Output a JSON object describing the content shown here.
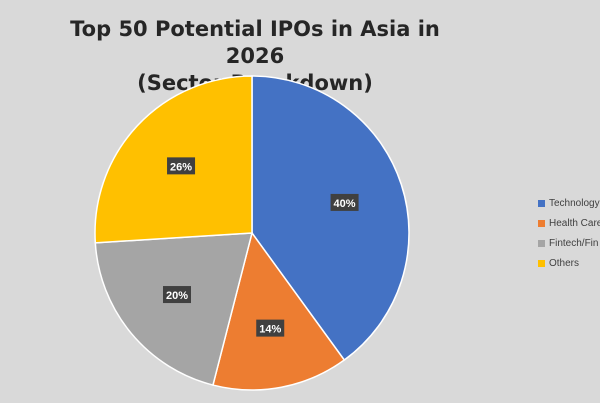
{
  "chart_data": {
    "type": "pie",
    "title_lines": [
      "Top 50 Potential IPOs in Asia in 2026",
      "(Sector Breakdown)"
    ],
    "categories": [
      "Technology",
      "Health Care",
      "Fintech/Fin",
      "Others"
    ],
    "values": [
      40,
      14,
      20,
      26
    ],
    "labels": [
      "40%",
      "14%",
      "20%",
      "26%"
    ],
    "colors": [
      "#4472c4",
      "#ed7d31",
      "#a5a5a5",
      "#ffc000"
    ],
    "legend_position": "right"
  },
  "legend": {
    "items": [
      {
        "label": "Technology",
        "color": "#4472c4"
      },
      {
        "label": "Health Care",
        "color": "#ed7d31"
      },
      {
        "label": "Fintech/Fin",
        "color": "#a5a5a5"
      },
      {
        "label": "Others",
        "color": "#ffc000"
      }
    ]
  }
}
